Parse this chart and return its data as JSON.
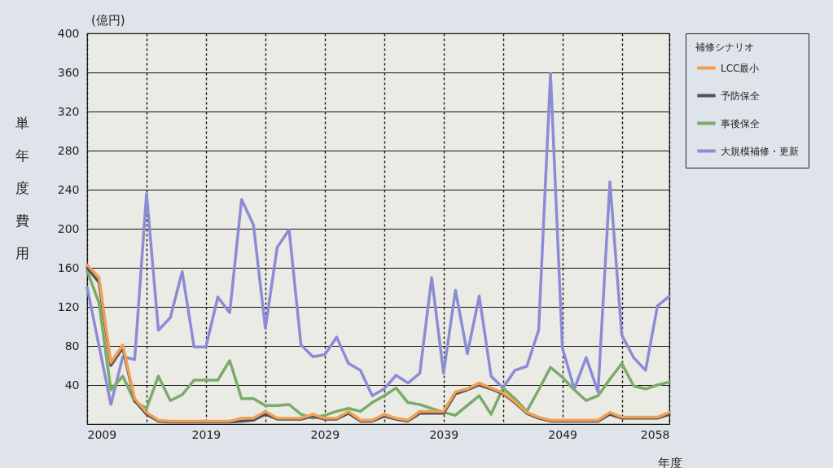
{
  "chart_data": {
    "type": "line",
    "xlabel": "年度",
    "ylabel": "単年度費用",
    "legend_title": "補修シナリオ",
    "annotations": [
      "(億円)"
    ],
    "x": [
      2009,
      2010,
      2011,
      2012,
      2013,
      2014,
      2015,
      2016,
      2017,
      2018,
      2019,
      2020,
      2021,
      2022,
      2023,
      2024,
      2025,
      2026,
      2027,
      2028,
      2029,
      2030,
      2031,
      2032,
      2033,
      2034,
      2035,
      2036,
      2037,
      2038,
      2039,
      2040,
      2041,
      2042,
      2043,
      2044,
      2045,
      2046,
      2047,
      2048,
      2049,
      2050,
      2051,
      2052,
      2053,
      2054,
      2055,
      2056,
      2057,
      2058
    ],
    "series": [
      {
        "name": "大規模補修・更新",
        "color": "#8c8cd6",
        "values": [
          140,
          80,
          20,
          69,
          66,
          236,
          96,
          109,
          156,
          79,
          79,
          130,
          114,
          230,
          204,
          98,
          181,
          199,
          81,
          69,
          71,
          89,
          62,
          55,
          29,
          36,
          50,
          42,
          52,
          150,
          52,
          137,
          72,
          131,
          49,
          37,
          55,
          59,
          96,
          359,
          78,
          36,
          68,
          33,
          248,
          91,
          68,
          55,
          121,
          131
        ]
      },
      {
        "name": "事後保全",
        "color": "#7aab6a",
        "values": [
          157,
          124,
          35,
          49,
          23,
          16,
          49,
          24,
          30,
          45,
          45,
          45,
          65,
          26,
          26,
          19,
          19,
          20,
          10,
          6,
          9,
          13,
          16,
          13,
          22,
          29,
          37,
          22,
          20,
          16,
          12,
          9,
          19,
          29,
          10,
          37,
          26,
          13,
          35,
          58,
          48,
          35,
          24,
          29,
          46,
          62,
          39,
          36,
          40,
          43
        ]
      },
      {
        "name": "予防保全",
        "color": "#505060",
        "values": [
          160,
          145,
          60,
          78,
          24,
          10,
          3,
          2,
          2,
          2,
          2,
          2,
          2,
          3,
          4,
          10,
          5,
          5,
          5,
          8,
          5,
          5,
          11,
          3,
          3,
          8,
          5,
          3,
          11,
          11,
          11,
          31,
          35,
          40,
          36,
          31,
          22,
          11,
          6,
          3,
          3,
          3,
          3,
          3,
          10,
          6,
          6,
          6,
          6,
          10
        ]
      },
      {
        "name": "LCC最小",
        "color": "#f0a050",
        "values": [
          163,
          150,
          63,
          81,
          26,
          12,
          4,
          3,
          3,
          3,
          3,
          3,
          3,
          6,
          6,
          13,
          6,
          6,
          6,
          10,
          6,
          6,
          13,
          4,
          4,
          10,
          6,
          4,
          13,
          13,
          13,
          33,
          36,
          42,
          37,
          32,
          23,
          12,
          7,
          4,
          4,
          4,
          4,
          4,
          12,
          7,
          7,
          7,
          7,
          12
        ]
      }
    ],
    "ylim": [
      0,
      400
    ],
    "yticks": [
      {
        "value": 0,
        "label": null
      },
      40,
      80,
      120,
      160,
      200,
      240,
      280,
      320,
      360,
      400
    ],
    "xlim": [
      2009,
      2058
    ],
    "xticks": [
      2009,
      {
        "value": 2014,
        "label": null
      },
      2019,
      {
        "value": 2024,
        "label": null
      },
      2029,
      {
        "value": 2034,
        "label": null
      },
      2039,
      {
        "value": 2044,
        "label": null
      },
      2049,
      {
        "value": 2054,
        "label": null
      },
      2058
    ],
    "grid": true,
    "legend": "right",
    "marker": "none",
    "line_style": "solid"
  }
}
